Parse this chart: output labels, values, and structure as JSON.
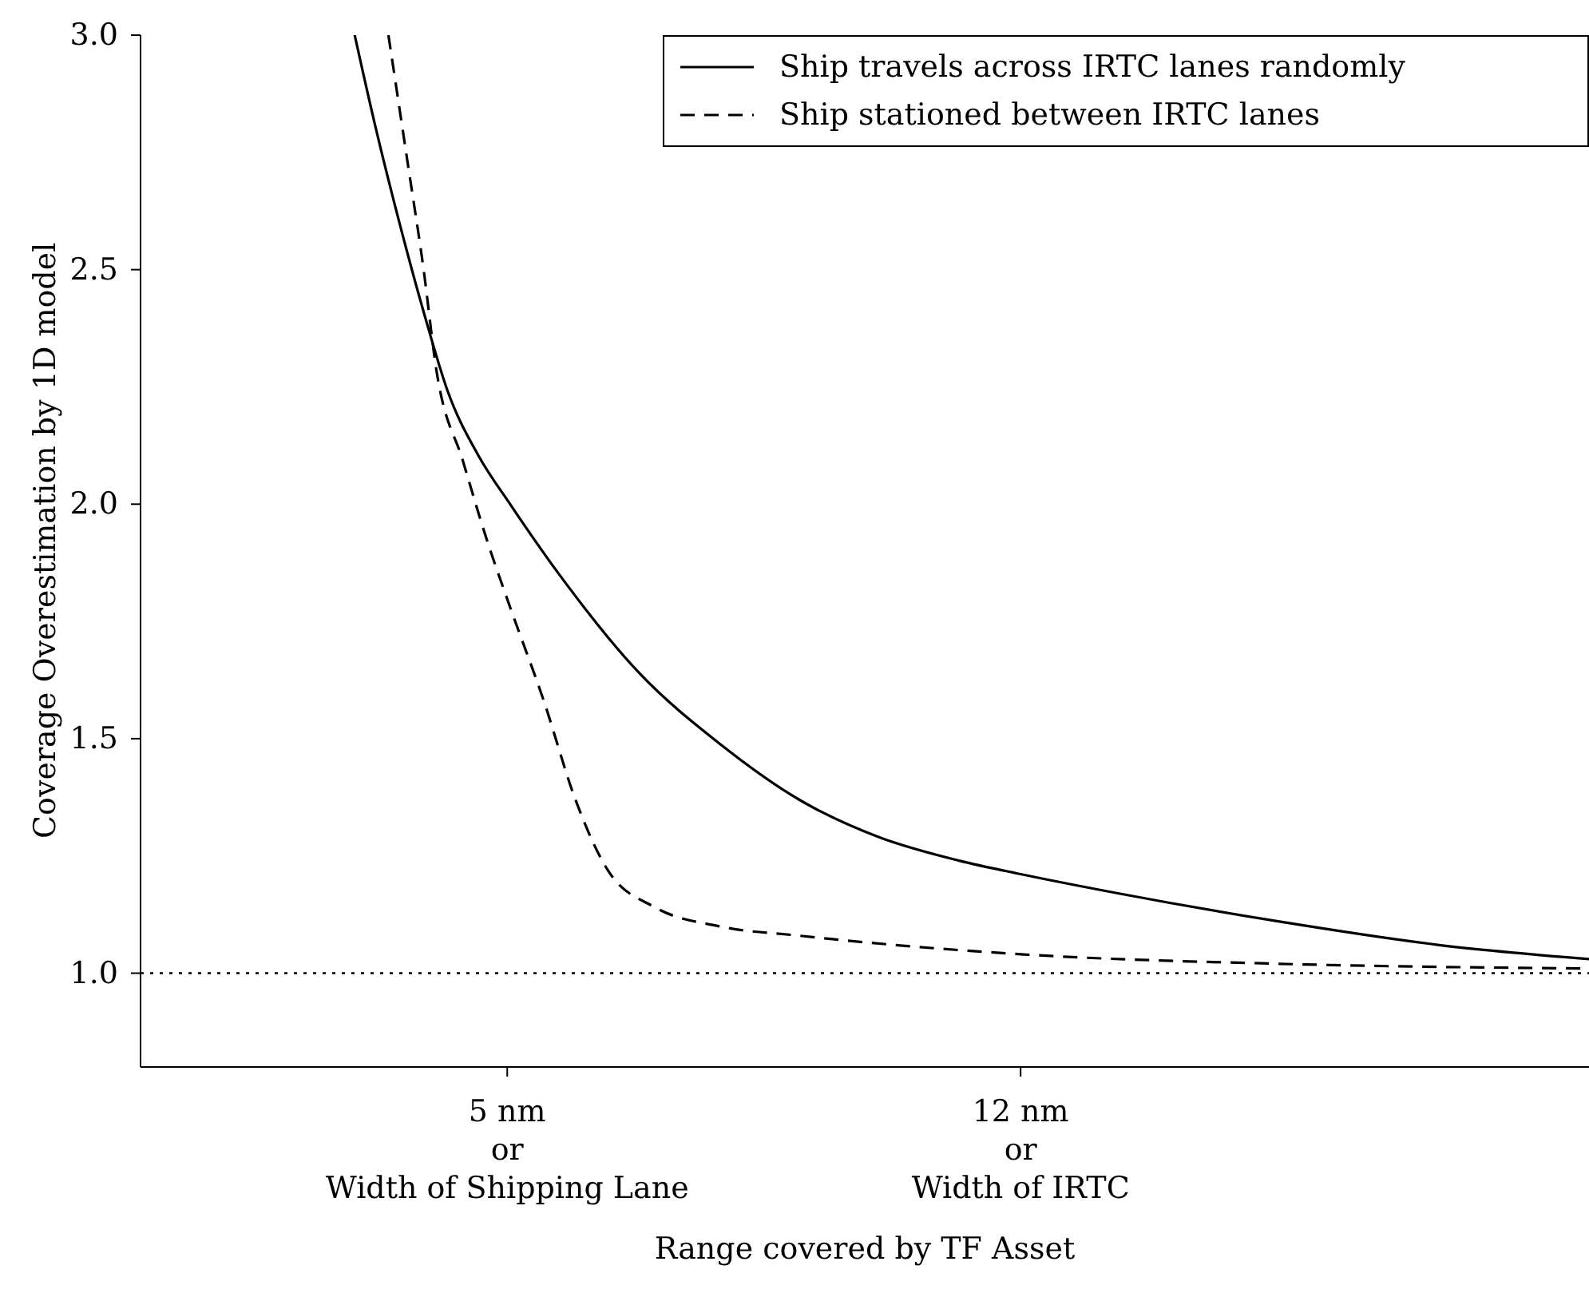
{
  "chart_data": {
    "type": "line",
    "xlabel": "Range covered by TF Asset",
    "ylabel": "Coverage Overestimation by 1D model",
    "xlim": [
      0,
      19.75
    ],
    "xticks": [
      {
        "value": 5,
        "label": "5 nm\nor\nWidth of Shipping Lane"
      },
      {
        "value": 12,
        "label": "12 nm\nor\nWidth of IRTC"
      }
    ],
    "ylim": [
      0.8,
      3.0
    ],
    "yticks": [
      {
        "value": 1,
        "label": "1.0"
      },
      {
        "value": 1.5,
        "label": "1.5"
      },
      {
        "value": 2,
        "label": "2.0"
      },
      {
        "value": 2.5,
        "label": "2.5"
      },
      {
        "value": 3,
        "label": "3.0"
      }
    ],
    "grid": false,
    "legend": "top right",
    "marker": "none",
    "series": [
      {
        "name": "Ship travels across IRTC lanes randomly",
        "color": "#000000",
        "line_style": "solid",
        "x": [
          2.92,
          3.21,
          3.53,
          3.86,
          4.19,
          4.62,
          5.04,
          5.71,
          6.8,
          7.89,
          8.98,
          10.07,
          11.16,
          12.04,
          13.34,
          15.53,
          17.71,
          19.75
        ],
        "values": [
          3.0,
          2.8,
          2.6,
          2.41,
          2.24,
          2.1,
          2.0,
          1.85,
          1.64,
          1.49,
          1.37,
          1.29,
          1.24,
          1.21,
          1.17,
          1.11,
          1.06,
          1.03
        ]
      },
      {
        "name": "Ship stationed between IRTC lanes",
        "color": "#000000",
        "line_style": "dashed",
        "x": [
          3.38,
          3.64,
          3.86,
          4.03,
          4.4,
          4.73,
          5.04,
          5.5,
          5.93,
          6.37,
          7.02,
          7.89,
          8.98,
          12.04,
          15.53,
          19.75
        ],
        "values": [
          3.0,
          2.73,
          2.5,
          2.29,
          2.09,
          1.92,
          1.78,
          1.58,
          1.37,
          1.22,
          1.14,
          1.1,
          1.08,
          1.04,
          1.02,
          1.01
        ]
      }
    ],
    "ref_lines": [
      {
        "axis": "y",
        "value": 1.0,
        "color": "#000000",
        "line_style": "dotted"
      }
    ]
  }
}
